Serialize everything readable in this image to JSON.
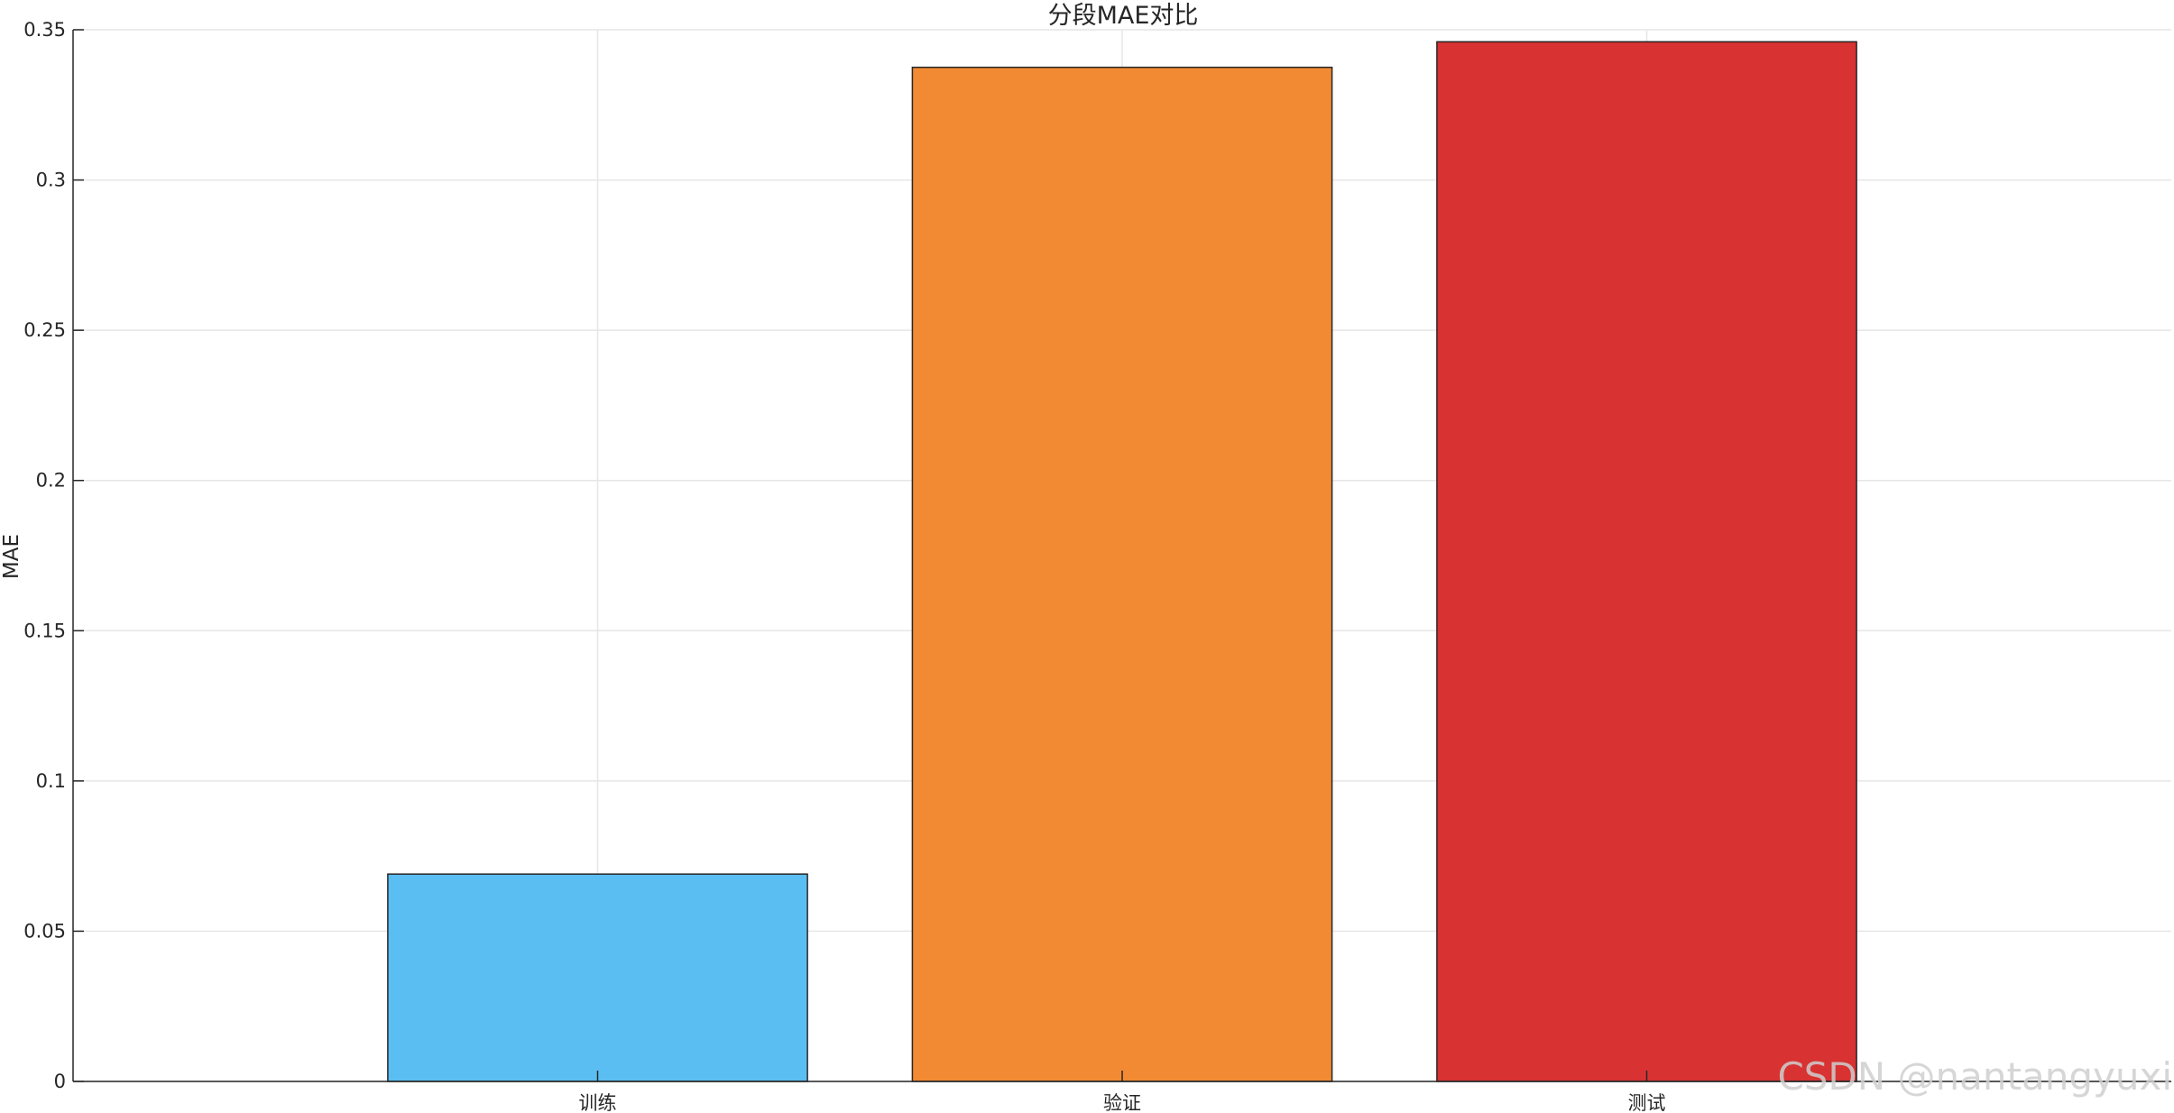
{
  "chart_data": {
    "type": "bar",
    "title": "分段MAE对比",
    "xlabel": "",
    "ylabel": "MAE",
    "categories": [
      "训练",
      "验证",
      "测试"
    ],
    "values": [
      0.069,
      0.3375,
      0.346
    ],
    "colors": [
      "#5BBEF2",
      "#F28A33",
      "#D83232"
    ],
    "ylim": [
      0,
      0.35
    ],
    "yticks": [
      0,
      0.05,
      0.1,
      0.15,
      0.2,
      0.25,
      0.3,
      0.35
    ],
    "ytick_labels": [
      "0",
      "0.05",
      "0.1",
      "0.15",
      "0.2",
      "0.25",
      "0.3",
      "0.35"
    ],
    "grid": true,
    "legend": "none"
  },
  "watermark": "CSDN @nantangyuxi"
}
